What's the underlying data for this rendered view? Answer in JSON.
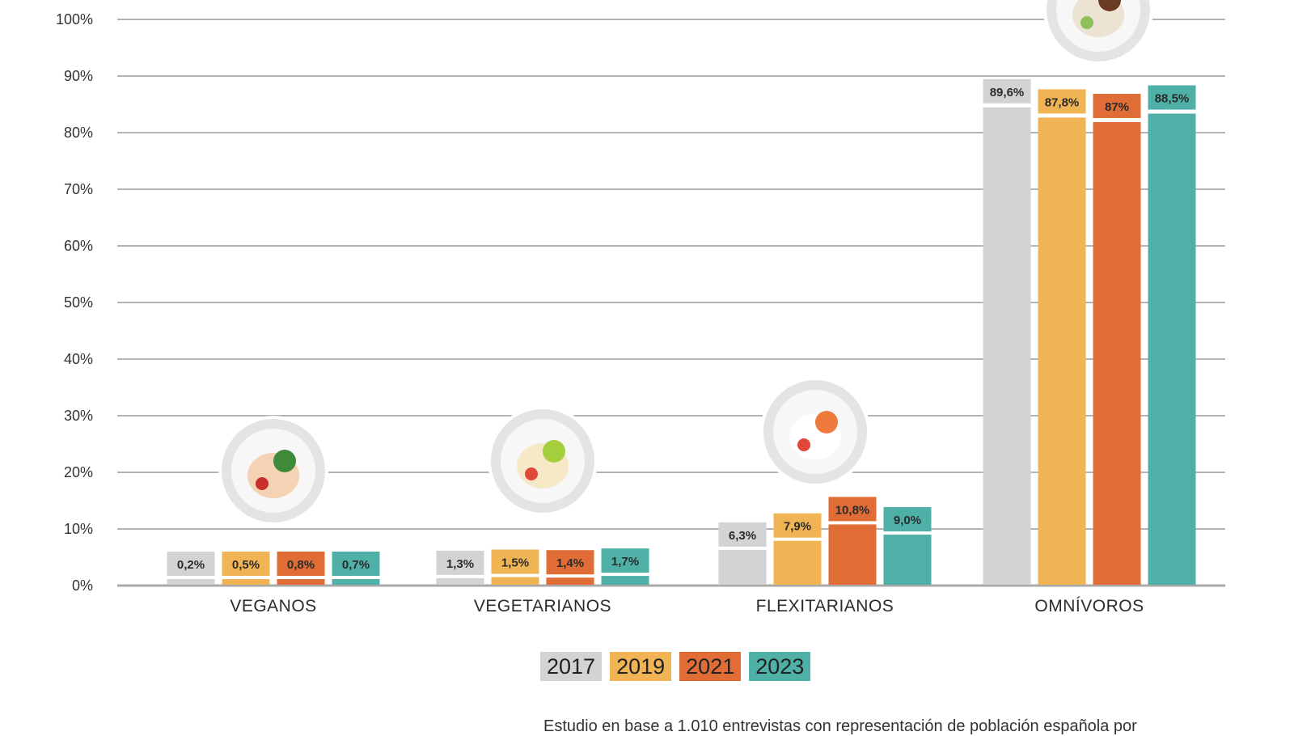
{
  "chart_data": {
    "type": "bar",
    "title": "",
    "xlabel": "",
    "ylabel": "",
    "ylim": [
      0,
      100
    ],
    "yticks": [
      "0%",
      "10%",
      "20%",
      "30%",
      "40%",
      "50%",
      "60%",
      "70%",
      "80%",
      "90%",
      "100%"
    ],
    "grid": true,
    "legend_position": "bottom",
    "categories": [
      "VEGANOS",
      "VEGETARIANOS",
      "FLEXITARIANOS",
      "OMNÍVOROS"
    ],
    "series": [
      {
        "name": "2017",
        "color": "#d2d3d4",
        "values": [
          0.2,
          1.3,
          6.3,
          89.6
        ],
        "labels": [
          "0,2%",
          "1,3%",
          "6,3%",
          "89,6%"
        ]
      },
      {
        "name": "2019",
        "color": "#f0b454",
        "values": [
          0.5,
          1.5,
          7.9,
          87.8
        ],
        "labels": [
          "0,5%",
          "1,5%",
          "7,9%",
          "87,8%"
        ]
      },
      {
        "name": "2021",
        "color": "#e06d36",
        "values": [
          0.8,
          1.4,
          10.8,
          87.0
        ],
        "labels": [
          "0,8%",
          "1,4%",
          "10,8%",
          "87%"
        ]
      },
      {
        "name": "2023",
        "color": "#4fb0a7",
        "values": [
          0.7,
          1.7,
          9.0,
          88.5
        ],
        "labels": [
          "0,7%",
          "1,7%",
          "9,0%",
          "88,5%"
        ]
      }
    ],
    "category_icons": [
      "plate-green-beans-noodles-icon",
      "plate-eggs-lime-icon",
      "plate-shrimp-salad-icon",
      "plate-meat-icon"
    ]
  },
  "legend": [
    {
      "label": "2017",
      "color": "#d2d3d4"
    },
    {
      "label": "2019",
      "color": "#f0b454"
    },
    {
      "label": "2021",
      "color": "#e06d36"
    },
    {
      "label": "2023",
      "color": "#4fb0a7"
    }
  ],
  "footnote": "Estudio en base a 1.010 entrevistas con representación de población española por"
}
